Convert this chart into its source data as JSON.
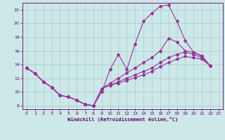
{
  "background_color": "#cce8e8",
  "grid_color": "#aacccc",
  "line_color": "#993399",
  "xlabel": "Windchill (Refroidissement éolien,°C)",
  "xlim": [
    -0.5,
    23.5
  ],
  "ylim": [
    7.5,
    23.0
  ],
  "yticks": [
    8,
    10,
    12,
    14,
    16,
    18,
    20,
    22
  ],
  "xticks": [
    0,
    1,
    2,
    3,
    4,
    5,
    6,
    7,
    8,
    9,
    10,
    11,
    12,
    13,
    14,
    15,
    16,
    17,
    18,
    19,
    20,
    21,
    22,
    23
  ],
  "line1_x": [
    0,
    1,
    2,
    3,
    4,
    5,
    6,
    7,
    8,
    9,
    10,
    11,
    12,
    13,
    14,
    15,
    16,
    17,
    18,
    19,
    20,
    21,
    22
  ],
  "line1_y": [
    13.5,
    12.7,
    11.5,
    10.7,
    9.5,
    9.3,
    8.8,
    8.2,
    8.0,
    10.0,
    13.3,
    15.5,
    13.3,
    17.0,
    20.3,
    21.5,
    22.5,
    22.7,
    20.3,
    17.5,
    15.8,
    15.2,
    13.8
  ],
  "line2_x": [
    0,
    1,
    2,
    3,
    4,
    5,
    6,
    7,
    8,
    9,
    10,
    11,
    12,
    13,
    14,
    15,
    16,
    17,
    18,
    19,
    20,
    21,
    22
  ],
  "line2_y": [
    13.5,
    12.7,
    11.5,
    10.7,
    9.5,
    9.3,
    8.8,
    8.2,
    8.0,
    10.5,
    11.3,
    12.0,
    12.8,
    13.5,
    14.3,
    15.0,
    16.0,
    17.8,
    17.3,
    16.0,
    15.8,
    15.3,
    13.8
  ],
  "line3_x": [
    0,
    1,
    2,
    3,
    4,
    5,
    6,
    7,
    8,
    9,
    10,
    11,
    12,
    13,
    14,
    15,
    16,
    17,
    18,
    19,
    20,
    21,
    22
  ],
  "line3_y": [
    13.5,
    12.7,
    11.5,
    10.7,
    9.5,
    9.3,
    8.8,
    8.2,
    8.0,
    10.5,
    11.0,
    11.5,
    12.0,
    12.5,
    13.0,
    13.5,
    14.3,
    15.0,
    15.5,
    15.8,
    15.5,
    15.0,
    13.8
  ],
  "line4_x": [
    0,
    1,
    2,
    3,
    4,
    5,
    6,
    7,
    8,
    9,
    10,
    11,
    12,
    13,
    14,
    15,
    16,
    17,
    18,
    19,
    20,
    21,
    22
  ],
  "line4_y": [
    13.5,
    12.7,
    11.5,
    10.7,
    9.5,
    9.3,
    8.8,
    8.2,
    8.0,
    10.5,
    11.0,
    11.3,
    11.7,
    12.1,
    12.5,
    13.0,
    13.7,
    14.3,
    14.8,
    15.2,
    15.0,
    14.8,
    13.8
  ]
}
